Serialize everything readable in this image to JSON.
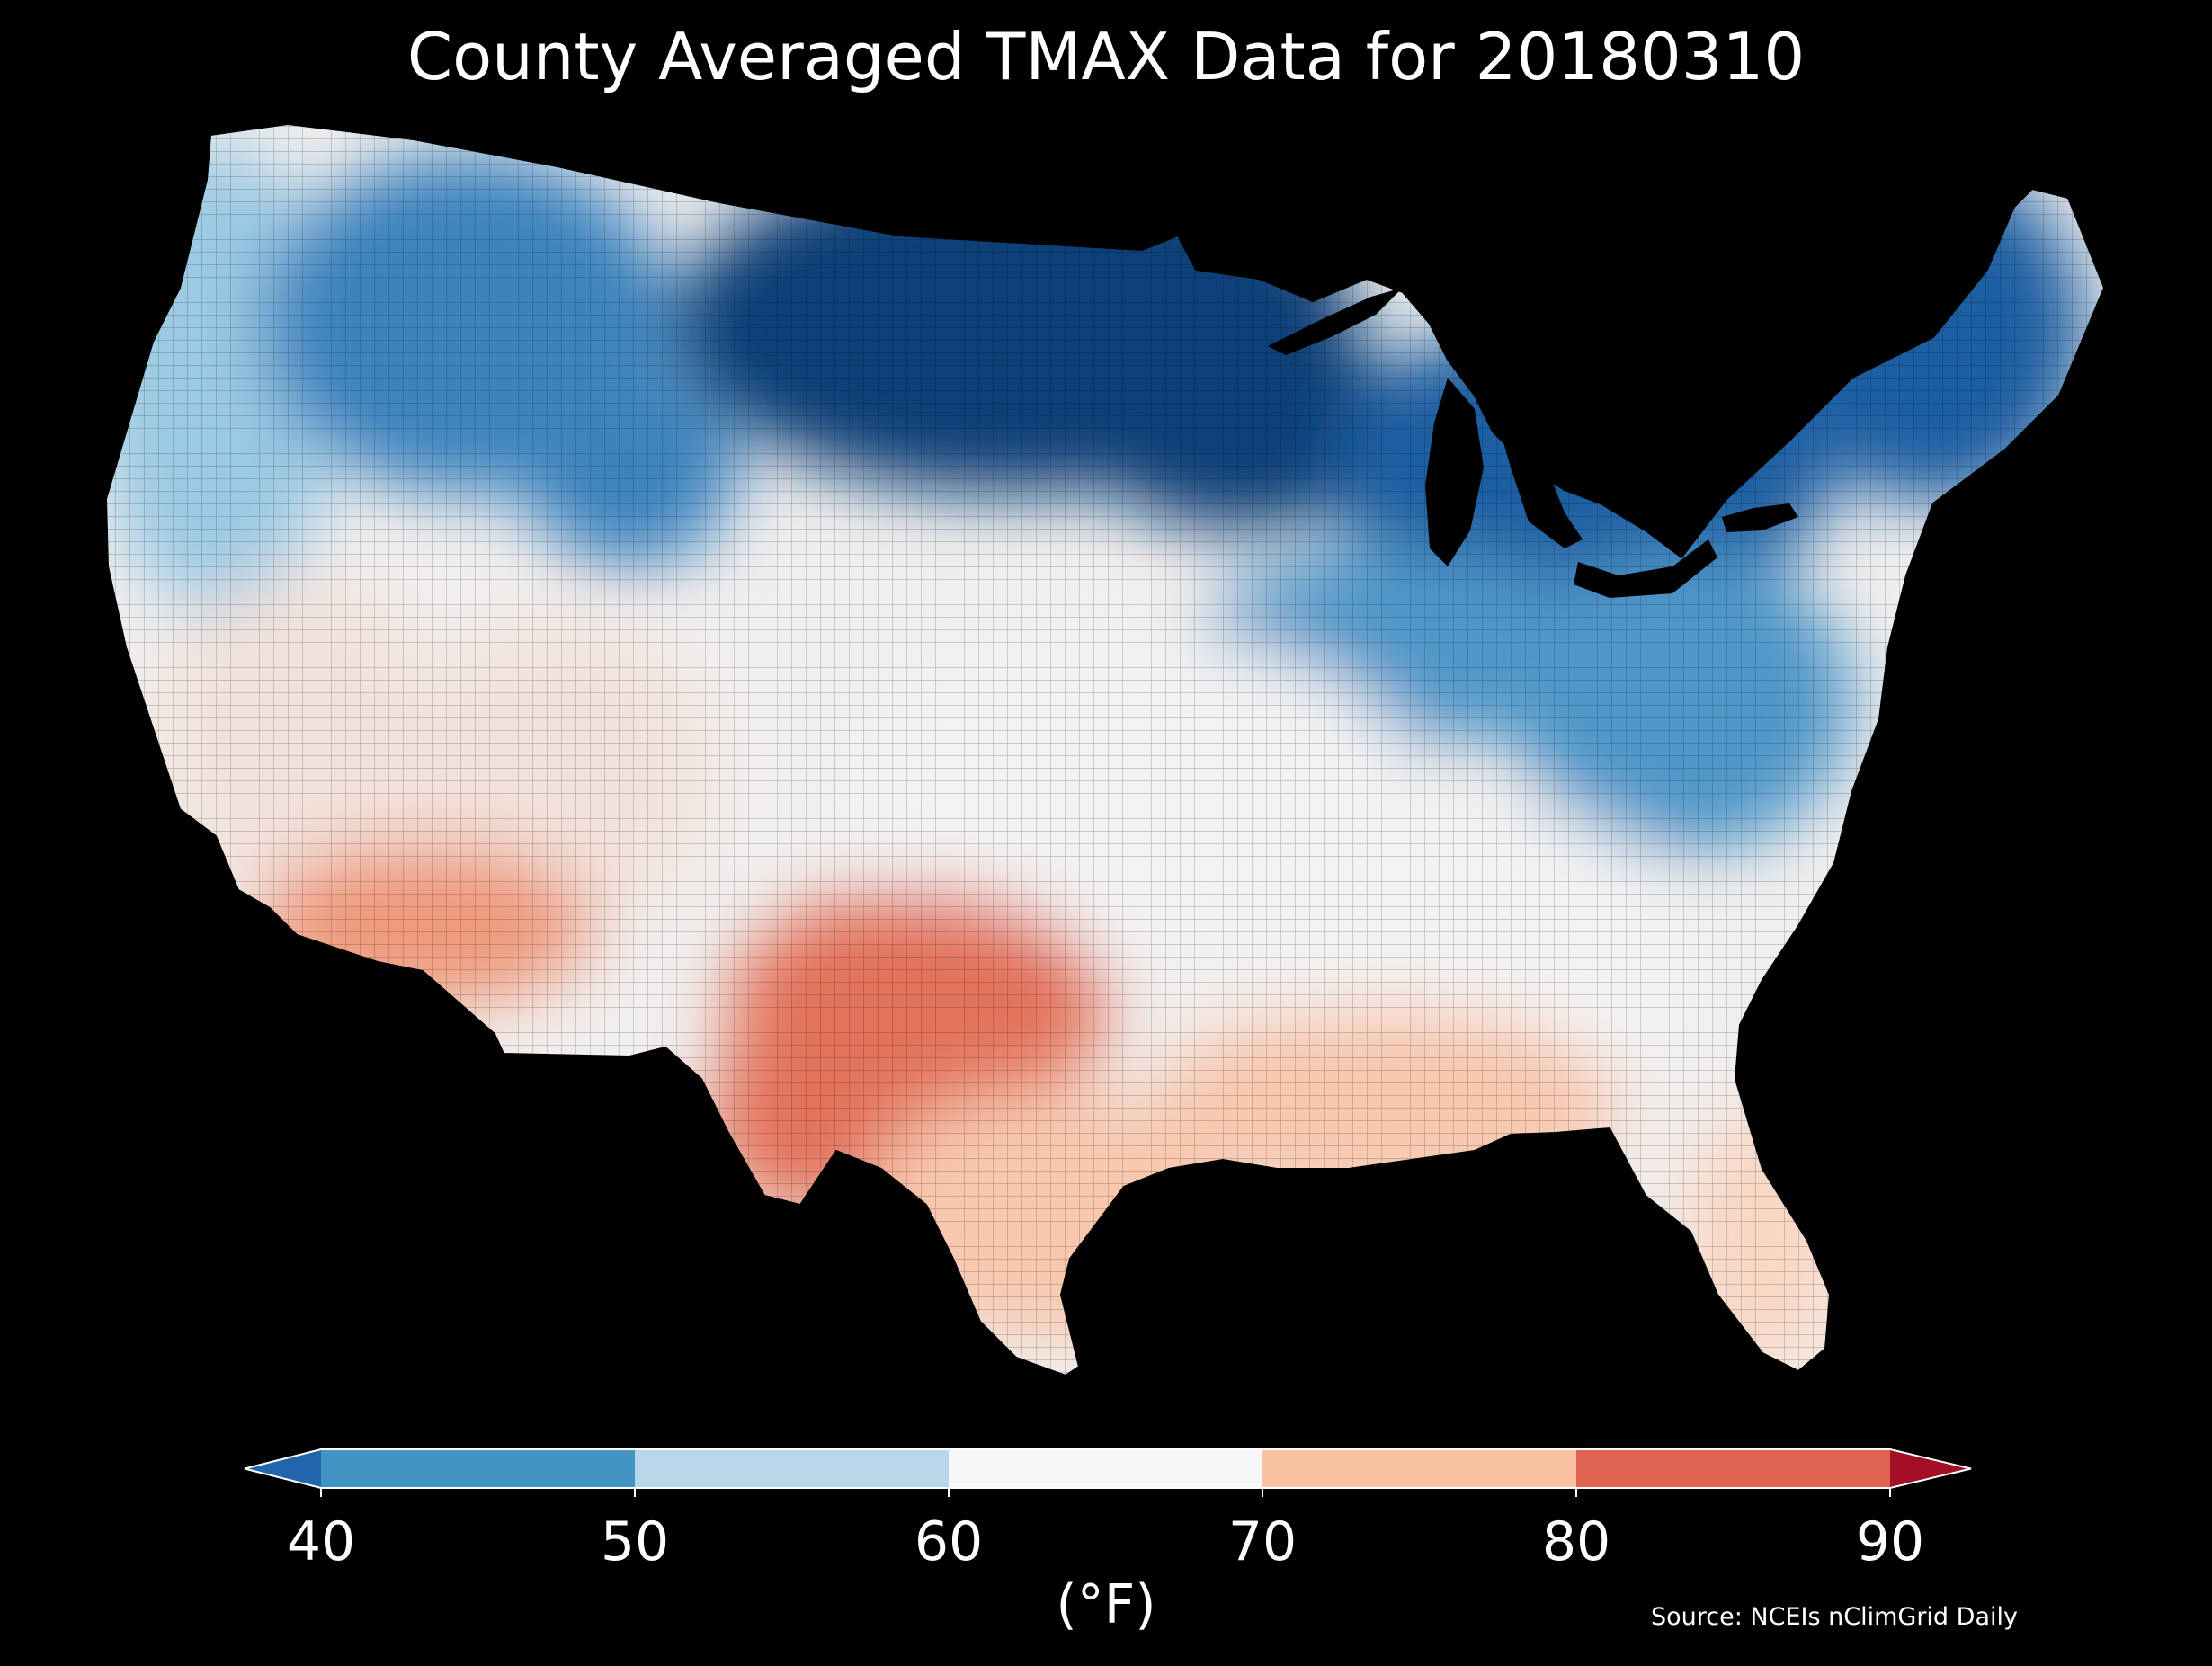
{
  "title": "County Averaged TMAX Data for 20180310",
  "colorbar": {
    "tick_labels": [
      "40",
      "50",
      "60",
      "70",
      "80",
      "90"
    ],
    "units_label": "(°F)",
    "bins": [
      {
        "range": "<40",
        "color": "#2166ac"
      },
      {
        "range": "40-50",
        "color": "#4393c3"
      },
      {
        "range": "50-60",
        "color": "#b8d7ea"
      },
      {
        "range": "60-70",
        "color": "#f7f7f7"
      },
      {
        "range": "70-80",
        "color": "#f9c2a3"
      },
      {
        "range": "80-90",
        "color": "#de6351"
      },
      {
        "range": ">90",
        "color": "#a50f26"
      }
    ],
    "extend": "both"
  },
  "source": "Source: NCEIs nClimGrid Daily",
  "map_regions": [
    {
      "region": "Pacific Northwest",
      "color": "#9ccae4"
    },
    {
      "region": "Northern Rockies",
      "color": "#3d84bf"
    },
    {
      "region": "Northern Plains / Upper Midwest",
      "color": "#0e3f78"
    },
    {
      "region": "Great Lakes / Northeast",
      "color": "#1f5fa3"
    },
    {
      "region": "Mid-Atlantic / Ohio Valley",
      "color": "#4f97c9"
    },
    {
      "region": "Central Plains / Mid-South",
      "color": "#f3f3f3"
    },
    {
      "region": "California / Great Basin",
      "color": "#f2e2db"
    },
    {
      "region": "Desert Southwest",
      "color": "#ef9a7c"
    },
    {
      "region": "West Texas",
      "color": "#e4735c"
    },
    {
      "region": "South Texas / Gulf Coast",
      "color": "#f8c7ae"
    },
    {
      "region": "Florida",
      "color": "#f9d7c4"
    }
  ]
}
